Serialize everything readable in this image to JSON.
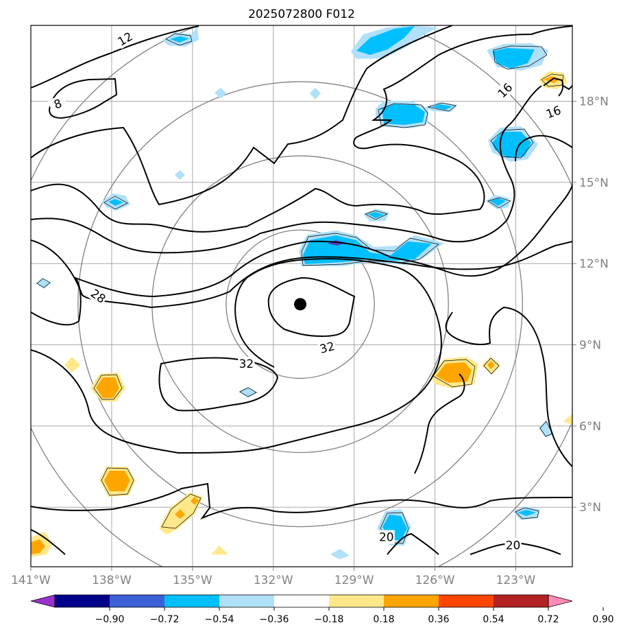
{
  "chart_data": {
    "type": "contour",
    "title": "2025072800 F012",
    "map": {
      "lon_range": [
        -141,
        -120.9
      ],
      "lat_range": [
        0.8,
        20.8
      ],
      "x_ticks": [
        "141°W",
        "138°W",
        "135°W",
        "132°W",
        "129°W",
        "126°W",
        "123°W"
      ],
      "x_tick_values": [
        -141,
        -138,
        -135,
        -132,
        -129,
        -126,
        -123
      ],
      "y_ticks": [
        "3°N",
        "6°N",
        "9°N",
        "12°N",
        "15°N",
        "18°N"
      ],
      "y_tick_values": [
        3,
        6,
        9,
        12,
        15,
        18
      ],
      "grid": true
    },
    "storm_center": {
      "lon": -131,
      "lat": 10.5
    },
    "range_rings_deg": [
      2.75,
      5.5,
      8.25,
      11
    ],
    "contour_labels": [
      {
        "text": "12",
        "lon": -137.5,
        "lat": 20.3,
        "rot": -30
      },
      {
        "text": "8",
        "lon": -140,
        "lat": 17.9,
        "rot": -20
      },
      {
        "text": "28",
        "lon": -138.5,
        "lat": 10.8,
        "rot": 35
      },
      {
        "text": "32",
        "lon": -133,
        "lat": 8.3,
        "rot": 0
      },
      {
        "text": "32",
        "lon": -130,
        "lat": 8.9,
        "rot": -15
      },
      {
        "text": "16",
        "lon": -123.4,
        "lat": 18.4,
        "rot": -45
      },
      {
        "text": "16",
        "lon": -121.6,
        "lat": 17.6,
        "rot": -20
      },
      {
        "text": "20",
        "lon": -127.8,
        "lat": 1.9,
        "rot": 0
      },
      {
        "text": "20",
        "lon": -123.1,
        "lat": 1.6,
        "rot": 0
      }
    ],
    "colorbar": {
      "ticks": [
        "−0.90",
        "−0.72",
        "−0.54",
        "−0.36",
        "−0.18",
        "0.18",
        "0.36",
        "0.54",
        "0.72",
        "0.90"
      ],
      "colors": [
        "#9932cc",
        "#00008b",
        "#3b5fd6",
        "#00bfff",
        "#b0e0fa",
        "#ffffff",
        "#ffe88a",
        "#ffa500",
        "#ff4500",
        "#b22222",
        "#ff8ab5"
      ]
    },
    "shading_colors": {
      "light_blue": "#b0e0fa",
      "blue": "#00bfff",
      "purple": "#5a3fc0",
      "yellow": "#ffe88a",
      "orange": "#ffa500"
    }
  }
}
